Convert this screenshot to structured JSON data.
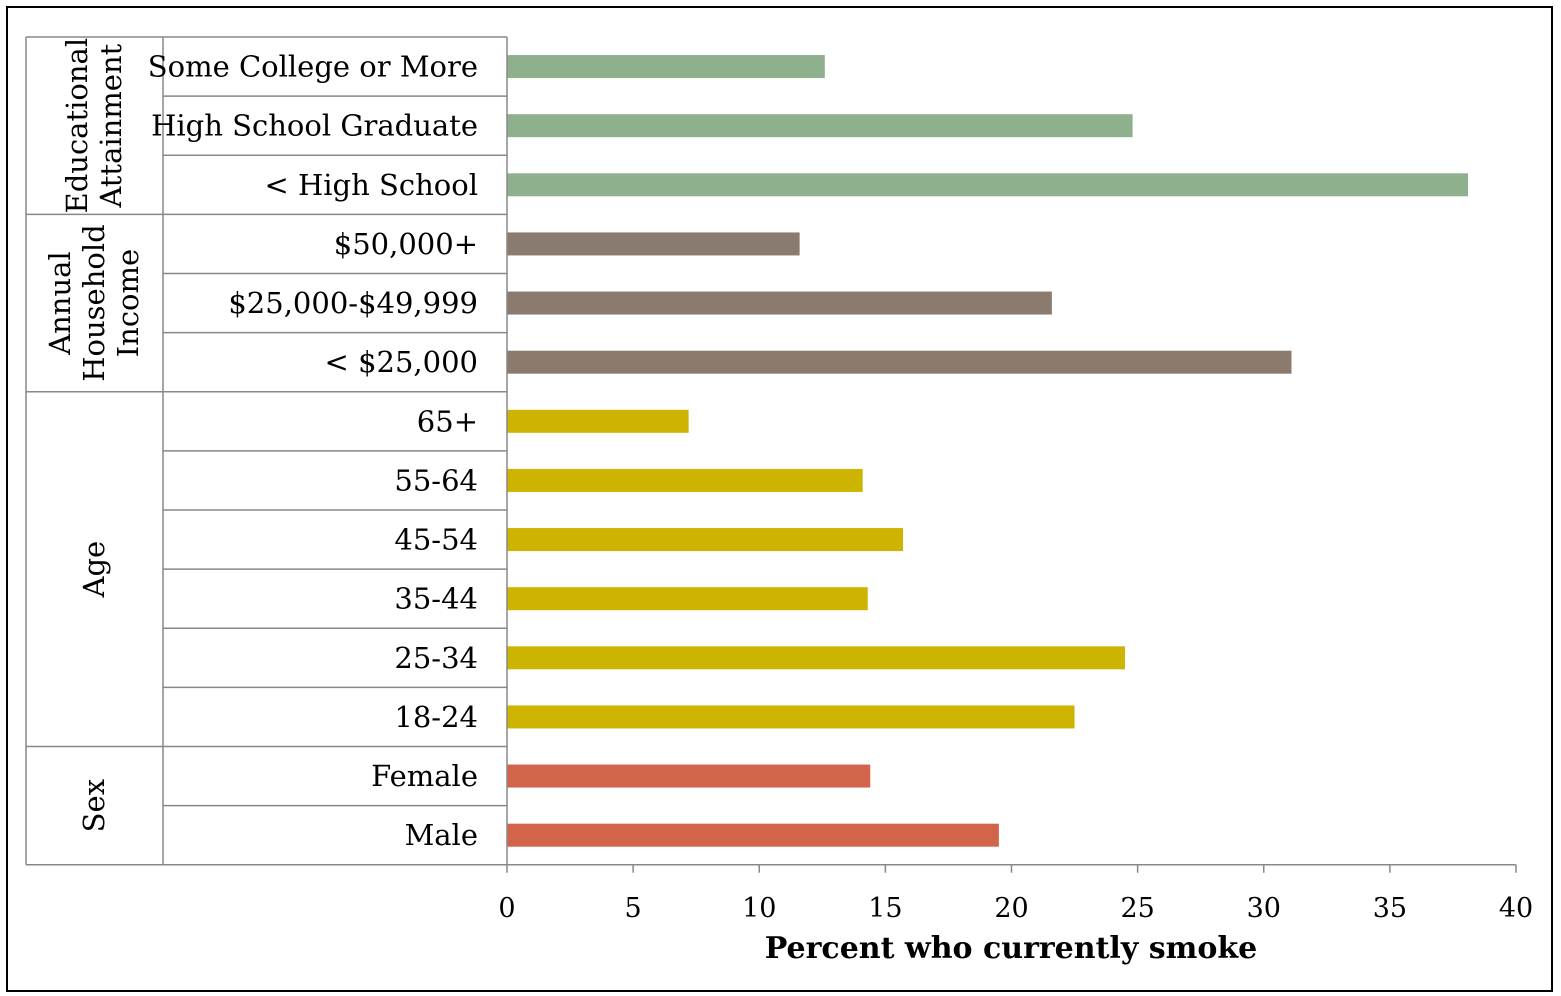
{
  "chart_data": {
    "type": "bar",
    "orientation": "horizontal",
    "xlabel": "Percent who currently smoke",
    "xlim": [
      0,
      40
    ],
    "xticks": [
      0,
      5,
      10,
      15,
      20,
      25,
      30,
      35,
      40
    ],
    "grid": false,
    "groups": [
      {
        "name_lines": [
          "Educational",
          "Attainment"
        ],
        "color": "#8FB08C",
        "categories": [
          "Some College or More",
          "High School Graduate",
          "< High School"
        ],
        "values": [
          12.6,
          24.8,
          38.1
        ]
      },
      {
        "name_lines": [
          "Annual",
          "Household",
          "Income"
        ],
        "color": "#8B7B6E",
        "categories": [
          "$50,000+",
          "$25,000-$49,999",
          "< $25,000"
        ],
        "values": [
          11.6,
          21.6,
          31.1
        ]
      },
      {
        "name_lines": [
          "Age"
        ],
        "color": "#CCB400",
        "categories": [
          "65+",
          "55-64",
          "45-54",
          "35-44",
          "25-34",
          "18-24"
        ],
        "values": [
          7.2,
          14.1,
          15.7,
          14.3,
          24.5,
          22.5
        ]
      },
      {
        "name_lines": [
          "Sex"
        ],
        "color": "#D1644B",
        "categories": [
          "Female",
          "Male"
        ],
        "values": [
          14.4,
          19.5
        ]
      }
    ]
  }
}
